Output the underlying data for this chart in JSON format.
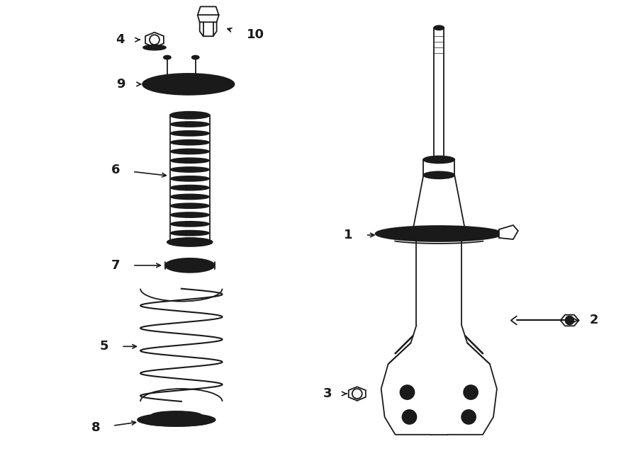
{
  "bg_color": "#ffffff",
  "line_color": "#1a1a1a",
  "line_width": 1.3,
  "fig_width": 9.0,
  "fig_height": 6.61,
  "dpi": 100
}
